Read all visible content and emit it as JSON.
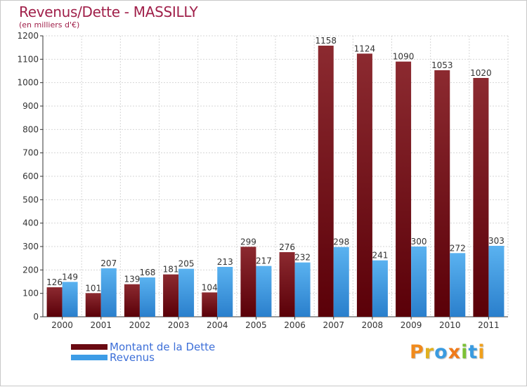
{
  "title": "Revenus/Dette - MASSILLY",
  "subtitle": "(en milliers d'€)",
  "brand": {
    "text": "Proxiti",
    "colors": [
      "#f08a1c",
      "#e0b020",
      "#3a9be0",
      "#ef7a1a",
      "#7cc136",
      "#3a9be0",
      "#f0a01c"
    ]
  },
  "colors": {
    "dette": "#7a1018",
    "revenus": "#3d9ce6",
    "title": "#a0204a",
    "legend_text": "#3d6fd8"
  },
  "chart_data": {
    "type": "bar",
    "categories": [
      "2000",
      "2001",
      "2002",
      "2003",
      "2004",
      "2005",
      "2006",
      "2007",
      "2008",
      "2009",
      "2010",
      "2011"
    ],
    "series": [
      {
        "name": "Montant de la Dette",
        "values": [
          126,
          101,
          139,
          181,
          104,
          299,
          276,
          1158,
          1124,
          1090,
          1053,
          1020
        ]
      },
      {
        "name": "Revenus",
        "values": [
          149,
          207,
          168,
          205,
          213,
          217,
          232,
          298,
          241,
          300,
          272,
          303
        ]
      }
    ],
    "yticks": [
      0,
      100,
      200,
      300,
      400,
      500,
      600,
      700,
      800,
      900,
      1000,
      1100,
      1200
    ],
    "ylim": [
      0,
      1200
    ],
    "grid": true,
    "legend": "bottom-left"
  }
}
